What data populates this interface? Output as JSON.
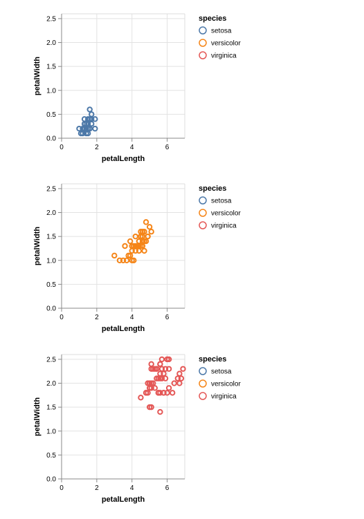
{
  "legend": {
    "title": "species",
    "entries": [
      {
        "label": "setosa",
        "color": "#4c78a8"
      },
      {
        "label": "versicolor",
        "color": "#f58518"
      },
      {
        "label": "virginica",
        "color": "#e45756"
      }
    ]
  },
  "chart_data": [
    {
      "type": "scatter",
      "xlabel": "petalLength",
      "ylabel": "petalWidth",
      "xlim": [
        0,
        7
      ],
      "ylim": [
        0,
        2.6
      ],
      "xticks": [
        "0",
        "2",
        "4",
        "6"
      ],
      "yticks": [
        "0.0",
        "0.5",
        "1.0",
        "1.5",
        "2.0",
        "2.5"
      ],
      "grid": true,
      "legend_position": "right",
      "series": [
        {
          "name": "setosa",
          "color": "#4c78a8",
          "points": [
            [
              1.4,
              0.2
            ],
            [
              1.3,
              0.2
            ],
            [
              1.5,
              0.2
            ],
            [
              1.7,
              0.4
            ],
            [
              1.4,
              0.3
            ],
            [
              1.5,
              0.1
            ],
            [
              1.6,
              0.2
            ],
            [
              1.1,
              0.1
            ],
            [
              1.2,
              0.2
            ],
            [
              1.3,
              0.4
            ],
            [
              1.7,
              0.3
            ],
            [
              1.0,
              0.2
            ],
            [
              1.7,
              0.5
            ],
            [
              1.9,
              0.2
            ],
            [
              1.6,
              0.4
            ],
            [
              1.5,
              0.4
            ],
            [
              1.3,
              0.3
            ],
            [
              1.4,
              0.1
            ],
            [
              1.6,
              0.6
            ],
            [
              1.9,
              0.4
            ],
            [
              1.2,
              0.1
            ],
            [
              1.3,
              0.2
            ],
            [
              1.6,
              0.2
            ],
            [
              1.5,
              0.3
            ]
          ]
        }
      ]
    },
    {
      "type": "scatter",
      "xlabel": "petalLength",
      "ylabel": "petalWidth",
      "xlim": [
        0,
        7
      ],
      "ylim": [
        0,
        2.6
      ],
      "xticks": [
        "0",
        "2",
        "4",
        "6"
      ],
      "yticks": [
        "0.0",
        "0.5",
        "1.0",
        "1.5",
        "2.0",
        "2.5"
      ],
      "grid": true,
      "legend_position": "right",
      "series": [
        {
          "name": "versicolor",
          "color": "#f58518",
          "points": [
            [
              4.7,
              1.4
            ],
            [
              4.5,
              1.5
            ],
            [
              4.9,
              1.5
            ],
            [
              4.0,
              1.3
            ],
            [
              4.6,
              1.5
            ],
            [
              4.5,
              1.3
            ],
            [
              4.7,
              1.6
            ],
            [
              3.3,
              1.0
            ],
            [
              4.6,
              1.3
            ],
            [
              3.9,
              1.4
            ],
            [
              3.5,
              1.0
            ],
            [
              4.2,
              1.5
            ],
            [
              4.0,
              1.0
            ],
            [
              4.7,
              1.4
            ],
            [
              3.6,
              1.3
            ],
            [
              4.4,
              1.4
            ],
            [
              4.5,
              1.5
            ],
            [
              4.1,
              1.0
            ],
            [
              4.5,
              1.5
            ],
            [
              3.9,
              1.1
            ],
            [
              4.8,
              1.8
            ],
            [
              4.0,
              1.3
            ],
            [
              4.9,
              1.5
            ],
            [
              4.7,
              1.2
            ],
            [
              4.3,
              1.3
            ],
            [
              4.4,
              1.4
            ],
            [
              4.8,
              1.4
            ],
            [
              5.0,
              1.7
            ],
            [
              3.8,
              1.1
            ],
            [
              3.7,
              1.0
            ],
            [
              5.1,
              1.6
            ],
            [
              4.5,
              1.6
            ],
            [
              4.4,
              1.3
            ],
            [
              4.1,
              1.3
            ],
            [
              4.0,
              1.2
            ],
            [
              4.4,
              1.2
            ],
            [
              4.6,
              1.4
            ],
            [
              4.2,
              1.2
            ],
            [
              4.2,
              1.3
            ],
            [
              3.0,
              1.1
            ],
            [
              4.3,
              1.3
            ],
            [
              4.6,
              1.6
            ]
          ]
        }
      ]
    },
    {
      "type": "scatter",
      "xlabel": "petalLength",
      "ylabel": "petalWidth",
      "xlim": [
        0,
        7
      ],
      "ylim": [
        0,
        2.6
      ],
      "xticks": [
        "0",
        "2",
        "4",
        "6"
      ],
      "yticks": [
        "0.0",
        "0.5",
        "1.0",
        "1.5",
        "2.0",
        "2.5"
      ],
      "grid": true,
      "legend_position": "right",
      "series": [
        {
          "name": "virginica",
          "color": "#e45756",
          "points": [
            [
              6.0,
              2.5
            ],
            [
              5.1,
              1.9
            ],
            [
              5.9,
              2.1
            ],
            [
              5.6,
              1.8
            ],
            [
              5.8,
              2.2
            ],
            [
              6.6,
              2.1
            ],
            [
              4.5,
              1.7
            ],
            [
              6.3,
              1.8
            ],
            [
              5.8,
              1.8
            ],
            [
              6.1,
              2.5
            ],
            [
              5.1,
              2.0
            ],
            [
              5.3,
              1.9
            ],
            [
              5.5,
              2.1
            ],
            [
              5.0,
              2.0
            ],
            [
              5.1,
              2.4
            ],
            [
              5.3,
              2.3
            ],
            [
              5.5,
              1.8
            ],
            [
              6.7,
              2.2
            ],
            [
              6.9,
              2.3
            ],
            [
              5.0,
              1.5
            ],
            [
              5.7,
              2.3
            ],
            [
              4.9,
              2.0
            ],
            [
              6.7,
              2.0
            ],
            [
              4.9,
              1.8
            ],
            [
              5.7,
              2.1
            ],
            [
              6.0,
              1.8
            ],
            [
              4.8,
              1.8
            ],
            [
              5.6,
              2.1
            ],
            [
              6.1,
              1.9
            ],
            [
              6.4,
              2.0
            ],
            [
              5.6,
              2.2
            ],
            [
              5.1,
              1.5
            ],
            [
              5.6,
              1.4
            ],
            [
              6.1,
              2.3
            ],
            [
              5.6,
              2.4
            ],
            [
              5.5,
              1.8
            ],
            [
              4.8,
              1.8
            ],
            [
              5.4,
              2.1
            ],
            [
              5.6,
              2.4
            ],
            [
              5.1,
              2.3
            ],
            [
              5.9,
              2.3
            ],
            [
              5.7,
              2.5
            ],
            [
              5.2,
              2.3
            ],
            [
              5.4,
              2.3
            ],
            [
              6.8,
              2.1
            ],
            [
              5.8,
              1.8
            ],
            [
              5.0,
              1.9
            ],
            [
              5.2,
              2.0
            ],
            [
              5.4,
              2.3
            ],
            [
              6.0,
              2.5
            ]
          ]
        }
      ]
    }
  ]
}
